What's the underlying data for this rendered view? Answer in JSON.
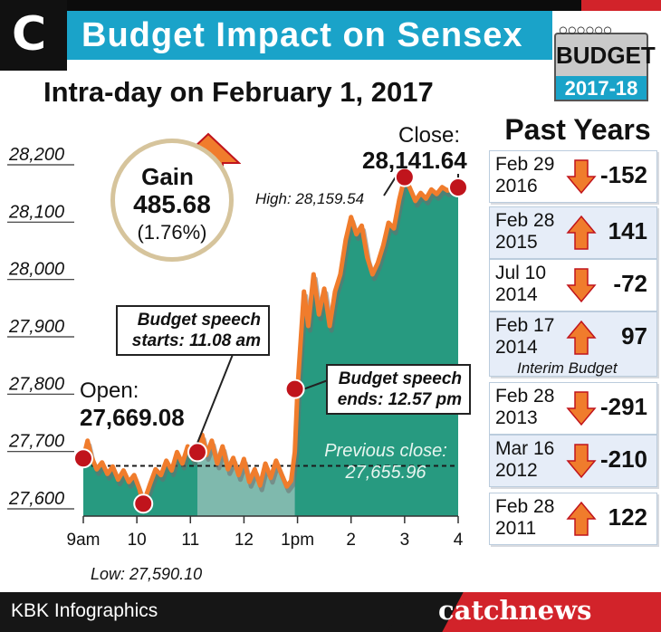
{
  "header": {
    "logo_letter": "C",
    "title": "Budget Impact on Sensex",
    "badge": {
      "word": "BUDGET",
      "year": "2017-18"
    }
  },
  "chart_data": {
    "type": "area",
    "title": "Intra-day on February 1, 2017",
    "y_ticks": [
      "28,200",
      "28,100",
      "28,000",
      "27,900",
      "27,800",
      "27,700",
      "27,600"
    ],
    "y_tick_values": [
      28200,
      28100,
      28000,
      27900,
      27800,
      27700,
      27600
    ],
    "x_ticks": [
      "9am",
      "10",
      "11",
      "12",
      "1pm",
      "2",
      "3",
      "4"
    ],
    "x_tick_hours": [
      9,
      10,
      11,
      12,
      13,
      14,
      15,
      16
    ],
    "ylim": [
      27570,
      28250
    ],
    "xlim": [
      9.0,
      16.2
    ],
    "previous_close_value": 27655.96,
    "series": [
      {
        "x": [
          9.0,
          9.08,
          9.15,
          9.25,
          9.35,
          9.45,
          9.55,
          9.65,
          9.75,
          9.85,
          9.95,
          10.05,
          10.12,
          10.25,
          10.35,
          10.45,
          10.55,
          10.65,
          10.75,
          10.85,
          10.95,
          11.05,
          11.13,
          11.22,
          11.3,
          11.4,
          11.5,
          11.6,
          11.7,
          11.8,
          11.9,
          12.0,
          12.1,
          12.2,
          12.3,
          12.4,
          12.5,
          12.6,
          12.7,
          12.8,
          12.88,
          12.95,
          13.0,
          13.05,
          13.12,
          13.2,
          13.3,
          13.4,
          13.5,
          13.6,
          13.7,
          13.8,
          13.9,
          14.0,
          14.1,
          14.2,
          14.3,
          14.4,
          14.5,
          14.6,
          14.7,
          14.8,
          14.9,
          15.0,
          15.1,
          15.2,
          15.3,
          15.4,
          15.5,
          15.6,
          15.7,
          15.8,
          15.9,
          16.0
        ],
        "y": [
          27669.08,
          27700,
          27672,
          27650,
          27662,
          27642,
          27655,
          27632,
          27648,
          27628,
          27640,
          27615,
          27590.1,
          27625,
          27650,
          27640,
          27665,
          27648,
          27680,
          27660,
          27690,
          27668,
          27680,
          27710,
          27675,
          27700,
          27660,
          27690,
          27650,
          27670,
          27640,
          27668,
          27628,
          27650,
          27622,
          27660,
          27635,
          27665,
          27642,
          27620,
          27630,
          27680,
          27790,
          27860,
          27960,
          27900,
          27990,
          27920,
          27965,
          27900,
          27960,
          27990,
          28050,
          28090,
          28060,
          28075,
          28020,
          27990,
          28010,
          28040,
          28080,
          28070,
          28120,
          28159.54,
          28140,
          28118,
          28132,
          28122,
          28138,
          28130,
          28142,
          28136,
          28140,
          28141.64
        ]
      }
    ],
    "markers": {
      "open": {
        "label": "Open:",
        "value": "27,669.08"
      },
      "close": {
        "label": "Close:",
        "value": "28,141.64"
      },
      "high": {
        "label": "High: 28,159.54"
      },
      "low": {
        "label": "Low: 27,590.10"
      }
    },
    "annotations": {
      "speech_start": [
        "Budget speech",
        "starts: 11.08 am"
      ],
      "speech_end": [
        "Budget speech",
        "ends: 12.57 pm"
      ],
      "previous_close": "Previous close: 27,655.96"
    },
    "gain": {
      "label": "Gain",
      "value": "485.68",
      "pct": "(1.76%)"
    }
  },
  "past_years": {
    "title": "Past Years",
    "items": [
      {
        "date": "Feb 29 2016",
        "change": "-152",
        "direction": "down"
      },
      {
        "date": "Feb 28 2015",
        "change": "141",
        "direction": "up"
      },
      {
        "date": "Jul 10 2014",
        "change": "-72",
        "direction": "down"
      },
      {
        "date": "Feb 17 2014",
        "change": "97",
        "direction": "up",
        "note": "Interim Budget"
      },
      {
        "date": "Feb 28 2013",
        "change": "-291",
        "direction": "down"
      },
      {
        "date": "Mar 16 2012",
        "change": "-210",
        "direction": "down"
      },
      {
        "date": "Feb 28 2011",
        "change": "122",
        "direction": "up"
      }
    ]
  },
  "footer": {
    "credit": "KBK Infographics",
    "brand": "catchnews"
  },
  "colors": {
    "accent": "#1aa3c9",
    "area": "#279a80",
    "area_light": "#7fb9ad",
    "line": "#f07c2c",
    "marker": "#c0141c",
    "footer_red": "#d2232a"
  }
}
